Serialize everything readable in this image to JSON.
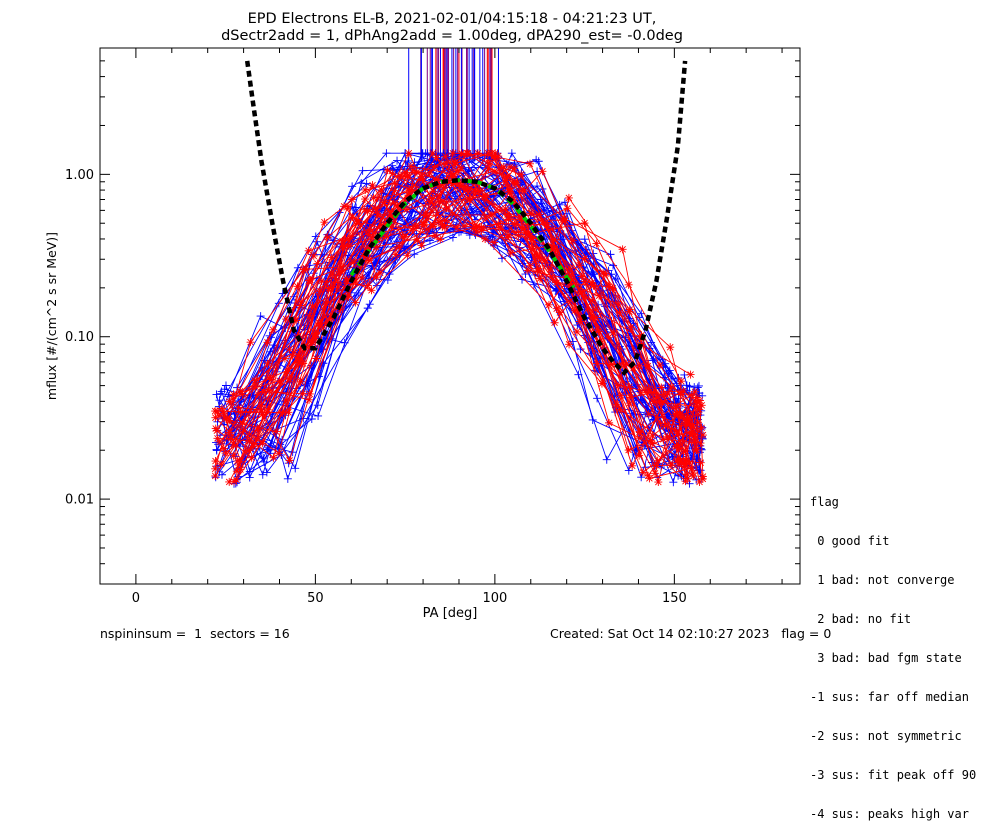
{
  "chart_data": {
    "type": "line",
    "title": "EPD Electrons EL-B, 2021-02-01/04:15:18 - 04:21:23 UT,",
    "subtitle": "dSectr2add = 1, dPhAng2add = 1.00deg, dPA290_est=  -0.0deg",
    "xlabel": "PA [deg]",
    "ylabel": "mflux [#/(cm^2 s sr MeV)]",
    "xlim": [
      -10,
      185
    ],
    "ylim": [
      0.003,
      6
    ],
    "yscale": "log",
    "x_ticks": [
      0,
      50,
      100,
      150
    ],
    "y_ticks": [
      {
        "value": 0.01,
        "label": "0.01"
      },
      {
        "value": 0.1,
        "label": "0.10"
      },
      {
        "value": 1.0,
        "label": "1.00"
      }
    ],
    "series_colors": {
      "blue": "#0000ff",
      "red": "#ff0000",
      "purple": "#800080",
      "fit": "#000000",
      "median": "#00cc00"
    },
    "fit_curve": {
      "x": [
        31,
        33,
        35,
        38,
        41,
        44,
        47,
        50,
        55,
        60,
        65,
        70,
        75,
        80,
        85,
        90,
        95,
        100,
        105,
        110,
        115,
        120,
        125,
        130,
        133,
        136,
        139,
        142,
        145,
        148,
        151,
        153
      ],
      "y": [
        5.0,
        2.4,
        1.2,
        0.5,
        0.22,
        0.11,
        0.085,
        0.085,
        0.13,
        0.22,
        0.35,
        0.5,
        0.68,
        0.82,
        0.9,
        0.92,
        0.9,
        0.82,
        0.68,
        0.5,
        0.35,
        0.22,
        0.13,
        0.085,
        0.07,
        0.06,
        0.07,
        0.11,
        0.22,
        0.55,
        1.5,
        5.0
      ]
    },
    "median_curve": {
      "x": [
        60,
        65,
        70,
        75,
        80,
        85,
        90,
        95,
        100,
        105,
        110,
        115,
        122
      ],
      "y": [
        0.24,
        0.34,
        0.48,
        0.66,
        0.82,
        0.9,
        0.92,
        0.9,
        0.82,
        0.66,
        0.48,
        0.34,
        0.2
      ]
    },
    "pitch_angle_markers": {
      "x_min": 76,
      "x_max": 101,
      "y_low": 1.2,
      "y_high": 6
    },
    "flux_curves": {
      "count_blue": 60,
      "count_red": 38,
      "pa_min": 22,
      "pa_max": 158,
      "peak_pa": 90,
      "peak_flux": 0.85,
      "floor_flux": 0.025
    }
  },
  "legend": {
    "title": "flag",
    "items": [
      " 0 good fit",
      " 1 bad: not converge",
      " 2 bad: no fit",
      " 3 bad: bad fgm state",
      "-1 sus: far off median",
      "-2 sus: not symmetric",
      "-3 sus: fit peak off 90",
      "-4 sus: peaks high var"
    ]
  },
  "footer": {
    "left": "nspininsum =  1  sectors = 16",
    "right": "Created: Sat Oct 14 02:10:27 2023   flag = 0"
  }
}
